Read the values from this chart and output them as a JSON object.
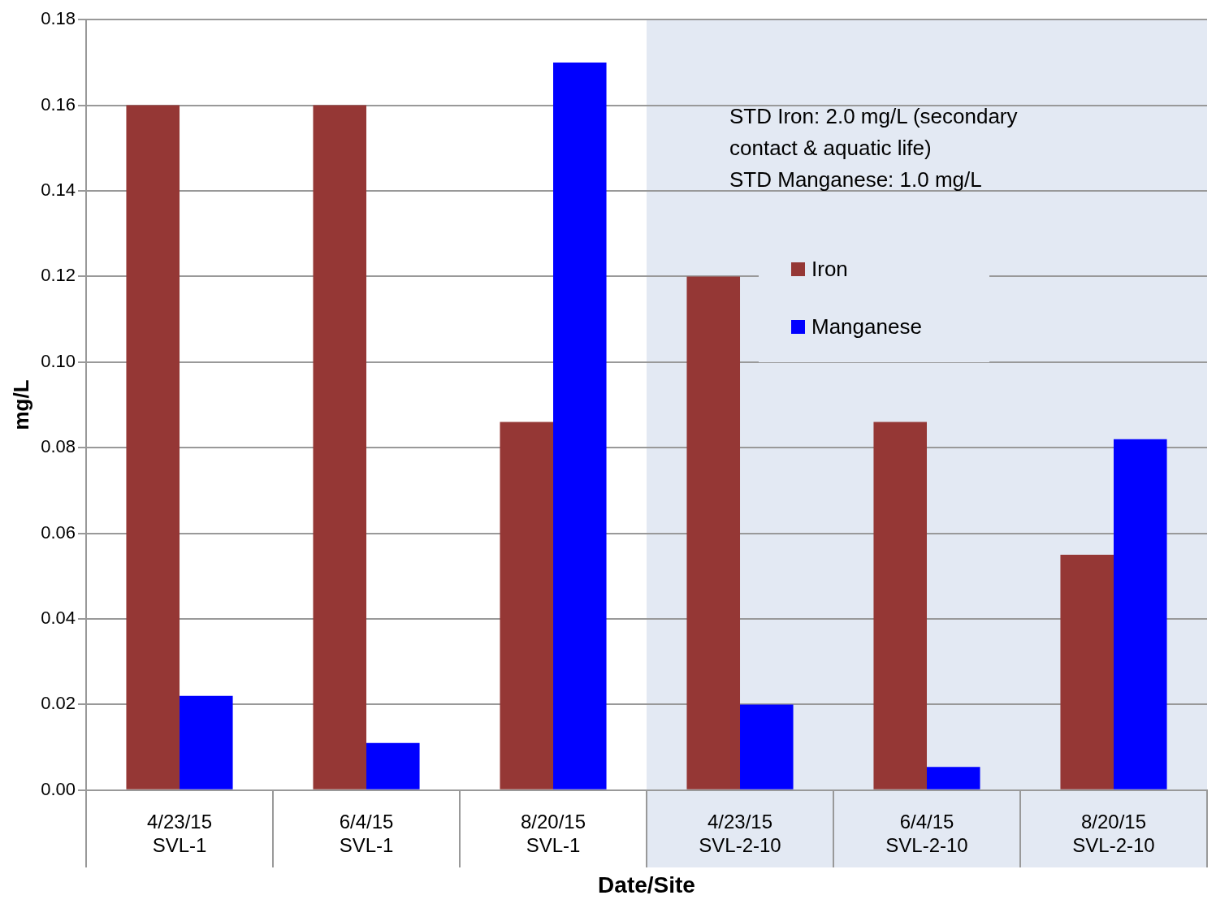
{
  "chart_data": {
    "type": "bar",
    "xlabel": "Date/Site",
    "ylabel": "mg/L",
    "categories": [
      "4/23/15\nSVL-1",
      "6/4/15\nSVL-1",
      "8/20/15\nSVL-1",
      "4/23/15\nSVL-2-10",
      "6/4/15\nSVL-2-10",
      "8/20/15\nSVL-2-10"
    ],
    "series": [
      {
        "name": "Iron",
        "color": "#953735",
        "values": [
          0.16,
          0.16,
          0.086,
          0.12,
          0.086,
          0.055
        ]
      },
      {
        "name": "Manganese",
        "color": "#0000ff",
        "values": [
          0.022,
          0.011,
          0.17,
          0.02,
          0.0054,
          0.082
        ]
      }
    ],
    "ylim": [
      0,
      0.18
    ],
    "yticks": [
      {
        "value": 0,
        "label": "0.00"
      },
      {
        "value": 0.02,
        "label": "0.02"
      },
      {
        "value": 0.04,
        "label": "0.04"
      },
      {
        "value": 0.06,
        "label": "0.06"
      },
      {
        "value": 0.08,
        "label": "0.08"
      },
      {
        "value": 0.1,
        "label": "0.10"
      },
      {
        "value": 0.12,
        "label": "0.12"
      },
      {
        "value": 0.14,
        "label": "0.14"
      },
      {
        "value": 0.16,
        "label": "0.16"
      },
      {
        "value": 0.18,
        "label": "0.18"
      }
    ],
    "grid": "y",
    "legend": "top right",
    "bands": [
      {
        "axis": "x",
        "from": "4/23/15\nSVL-2-10",
        "to": "8/20/15\nSVL-2-10",
        "color": "#e3e9f3"
      }
    ],
    "annotations": [
      "STD Iron: 2.0 mg/L (secondary contact & aquatic life)",
      "STD Manganese: 1.0 mg/L"
    ]
  }
}
